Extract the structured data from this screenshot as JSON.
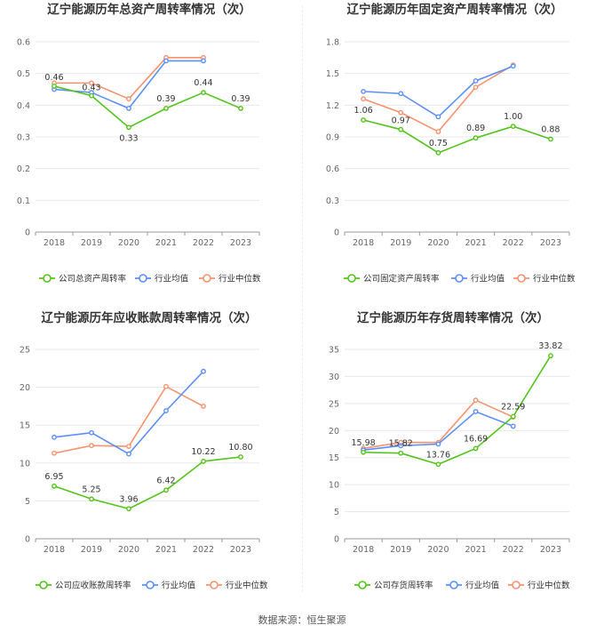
{
  "colors": {
    "green": "#52c41a",
    "blue": "#5b8ff9",
    "orange": "#f7926f",
    "grid": "#e8e8e8"
  },
  "footer": {
    "source": "数据来源：恒生聚源"
  },
  "chart_data": [
    {
      "type": "line",
      "title": "辽宁能源历年总资产周转率情况（次）",
      "categories": [
        "2018",
        "2019",
        "2020",
        "2021",
        "2022",
        "2023"
      ],
      "ylim": [
        0,
        0.6
      ],
      "yticks": [
        "0",
        "0.1",
        "0.2",
        "0.3",
        "0.4",
        "0.5",
        "0.6"
      ],
      "grid": true,
      "legend_position": "bottom",
      "series": [
        {
          "name": "公司总资产周转率",
          "color": "#52c41a",
          "values": [
            0.46,
            0.43,
            0.33,
            0.39,
            0.44,
            0.39
          ],
          "labels": [
            "0.46",
            "0.43",
            "0.33",
            "0.39",
            "0.44",
            "0.39"
          ]
        },
        {
          "name": "行业均值",
          "color": "#5b8ff9",
          "values": [
            0.45,
            0.44,
            0.39,
            0.54,
            0.54,
            null
          ]
        },
        {
          "name": "行业中位数",
          "color": "#f7926f",
          "values": [
            0.47,
            0.47,
            0.42,
            0.55,
            0.55,
            null
          ]
        }
      ]
    },
    {
      "type": "line",
      "title": "辽宁能源历年固定资产周转率情况（次）",
      "categories": [
        "2018",
        "2019",
        "2020",
        "2021",
        "2022",
        "2023"
      ],
      "ylim": [
        0,
        1.8
      ],
      "yticks": [
        "0",
        "0.3",
        "0.6",
        "0.9",
        "1.2",
        "1.5",
        "1.8"
      ],
      "grid": true,
      "legend_position": "bottom",
      "series": [
        {
          "name": "公司固定资产周转率",
          "color": "#52c41a",
          "values": [
            1.06,
            0.97,
            0.75,
            0.89,
            1.0,
            0.88
          ],
          "labels": [
            "1.06",
            "0.97",
            "0.75",
            "0.89",
            "1.00",
            "0.88"
          ]
        },
        {
          "name": "行业均值",
          "color": "#5b8ff9",
          "values": [
            1.33,
            1.31,
            1.09,
            1.43,
            1.57,
            null
          ]
        },
        {
          "name": "行业中位数",
          "color": "#f7926f",
          "values": [
            1.26,
            1.13,
            0.95,
            1.37,
            1.58,
            null
          ]
        }
      ]
    },
    {
      "type": "line",
      "title": "辽宁能源历年应收账款周转率情况（次）",
      "categories": [
        "2018",
        "2019",
        "2020",
        "2021",
        "2022",
        "2023"
      ],
      "ylim": [
        0,
        25
      ],
      "yticks": [
        "0",
        "5",
        "10",
        "15",
        "20",
        "25"
      ],
      "grid": true,
      "legend_position": "bottom",
      "series": [
        {
          "name": "公司应收账款周转率",
          "color": "#52c41a",
          "values": [
            6.95,
            5.25,
            3.96,
            6.42,
            10.22,
            10.8
          ],
          "labels": [
            "6.95",
            "5.25",
            "3.96",
            "6.42",
            "10.22",
            "10.80"
          ]
        },
        {
          "name": "行业均值",
          "color": "#5b8ff9",
          "values": [
            13.4,
            14.0,
            11.2,
            16.9,
            22.1,
            null
          ]
        },
        {
          "name": "行业中位数",
          "color": "#f7926f",
          "values": [
            11.3,
            12.3,
            12.2,
            20.1,
            17.5,
            null
          ]
        }
      ]
    },
    {
      "type": "line",
      "title": "辽宁能源历年存货周转率情况（次）",
      "categories": [
        "2018",
        "2019",
        "2020",
        "2021",
        "2022",
        "2023"
      ],
      "ylim": [
        0,
        35
      ],
      "yticks": [
        "0",
        "5",
        "10",
        "15",
        "20",
        "25",
        "30",
        "35"
      ],
      "grid": true,
      "legend_position": "bottom",
      "series": [
        {
          "name": "公司存货周转率",
          "color": "#52c41a",
          "values": [
            15.98,
            15.82,
            13.76,
            16.69,
            22.59,
            33.82
          ],
          "labels": [
            "15.98",
            "15.82",
            "13.76",
            "16.69",
            "22.59",
            "33.82"
          ]
        },
        {
          "name": "行业均值",
          "color": "#5b8ff9",
          "values": [
            16.4,
            17.2,
            17.5,
            23.5,
            20.8,
            null
          ]
        },
        {
          "name": "行业中位数",
          "color": "#f7926f",
          "values": [
            16.7,
            17.8,
            17.8,
            25.6,
            22.5,
            null
          ]
        }
      ]
    }
  ]
}
